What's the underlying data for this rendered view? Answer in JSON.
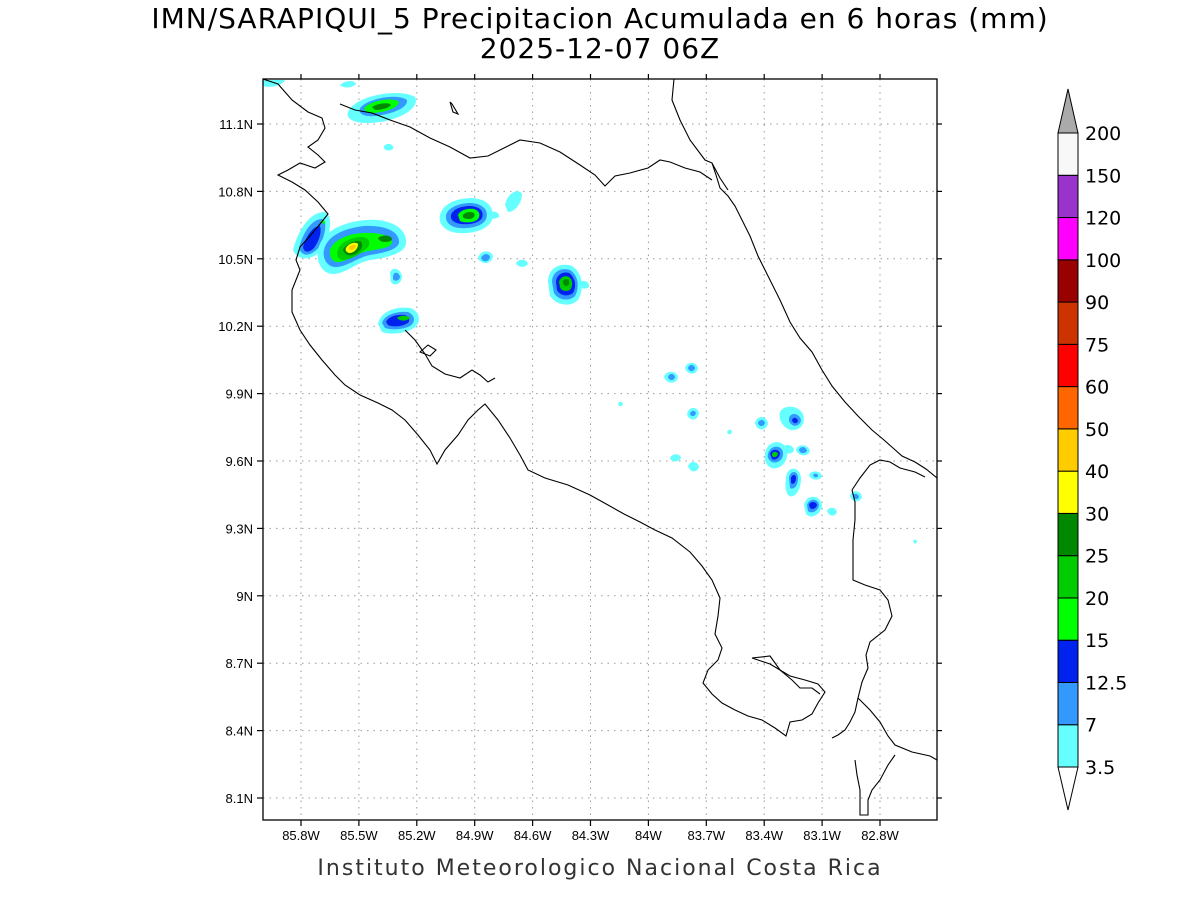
{
  "title_line1": "IMN/SARAPIQUI_5 Precipitacion Acumulada en 6 horas (mm)",
  "title_line2": "2025-12-07 06Z",
  "footer": "Instituto Meteorologico Nacional Costa Rica",
  "axes": {
    "lon_range": [
      -86.0,
      -83.4
    ],
    "lat_range": [
      8.0,
      11.3
    ],
    "x_ticks": [
      "85.8W",
      "85.5W",
      "85.2W",
      "84.9W",
      "84.6W",
      "84.3W",
      "84W",
      "83.7W",
      "83.4W",
      "83.1W",
      "82.8W"
    ],
    "y_ticks": [
      "11.1N",
      "10.8N",
      "10.5N",
      "10.2N",
      "9.9N",
      "9.6N",
      "9.3N",
      "9N",
      "8.7N",
      "8.4N",
      "8.1N"
    ],
    "grid": "dotted"
  },
  "colorbar": {
    "labels": [
      "3.5",
      "7",
      "12.5",
      "15",
      "20",
      "25",
      "30",
      "40",
      "50",
      "60",
      "75",
      "90",
      "100",
      "120",
      "150",
      "200"
    ],
    "colors": [
      "#66ffff",
      "#3399ff",
      "#0022ee",
      "#00ff00",
      "#00cc00",
      "#008800",
      "#ffff00",
      "#ffcc00",
      "#ff6600",
      "#ff0000",
      "#cc3300",
      "#990000",
      "#ff00ff",
      "#9933cc",
      "#f8f8f8"
    ],
    "under_color": "#ffffff",
    "over_color": "#aaaaaa"
  }
}
